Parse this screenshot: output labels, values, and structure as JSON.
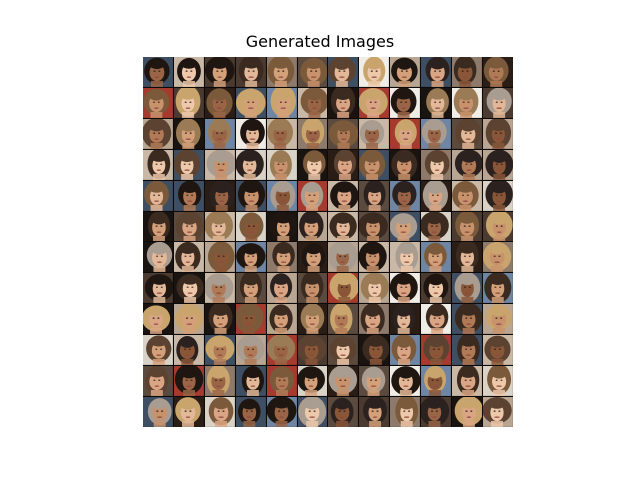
{
  "figure": {
    "title": "Generated Images"
  },
  "grid": {
    "rows": 12,
    "columns": 12,
    "tile_count": 144,
    "content": "generated face thumbnails",
    "colors": {
      "backgrounds": [
        "#2a1d16",
        "#5b4a3e",
        "#8d7a6a",
        "#b8a692",
        "#d9d2c6",
        "#3e4f63",
        "#6e86a3",
        "#a63a2e",
        "#1a1411",
        "#c9b8a5",
        "#f0ece6",
        "#4a3a2f"
      ],
      "skin": [
        "#c8926c",
        "#d9a584",
        "#b07a57",
        "#e3b898",
        "#9a6546",
        "#edc8aa",
        "#8a5638",
        "#d4a07a"
      ],
      "hair": [
        "#1f1611",
        "#3b2a1f",
        "#5c4230",
        "#7a5a3b",
        "#9b7b55",
        "#c9a56d",
        "#2b2220",
        "#a99c90"
      ]
    }
  }
}
